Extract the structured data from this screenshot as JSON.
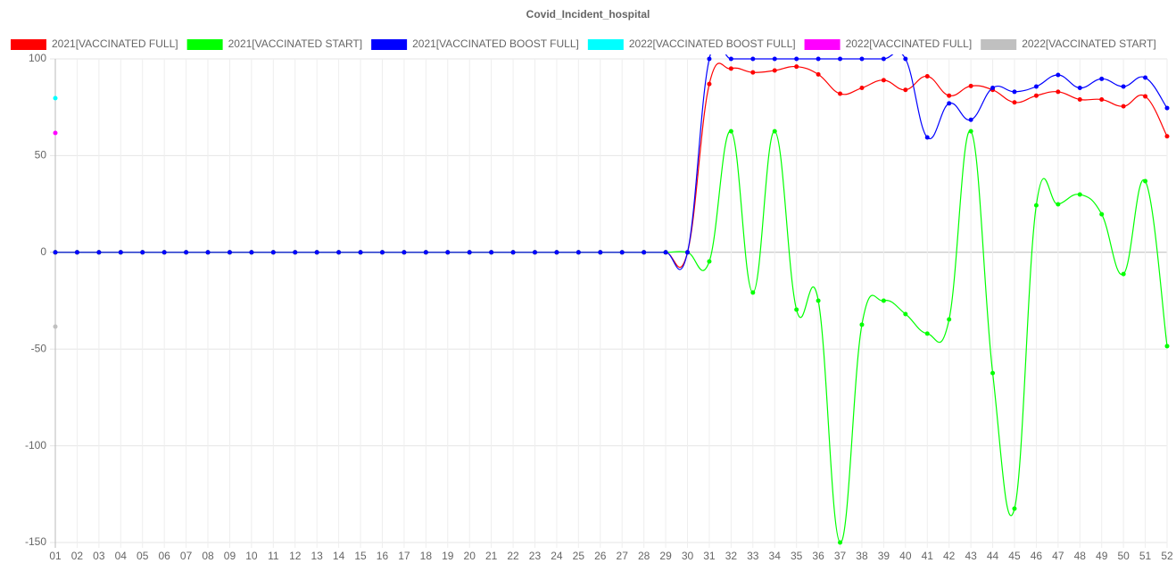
{
  "chart_data": {
    "type": "line",
    "title": "Covid_Incident_hospital",
    "categories": [
      "01",
      "02",
      "03",
      "04",
      "05",
      "06",
      "07",
      "08",
      "09",
      "10",
      "11",
      "12",
      "13",
      "14",
      "15",
      "16",
      "17",
      "18",
      "19",
      "20",
      "21",
      "22",
      "23",
      "24",
      "25",
      "26",
      "27",
      "28",
      "29",
      "30",
      "31",
      "32",
      "33",
      "34",
      "35",
      "36",
      "37",
      "38",
      "39",
      "40",
      "41",
      "42",
      "43",
      "44",
      "45",
      "46",
      "47",
      "48",
      "49",
      "50",
      "51",
      "52"
    ],
    "ylim": [
      -150,
      100
    ],
    "yticks": [
      -150,
      -100,
      -50,
      0,
      50,
      100
    ],
    "grid": true,
    "legend": "top",
    "series": [
      {
        "name": "2021[VACCINATED FULL]",
        "color": "#ff0000",
        "values": [
          0,
          0,
          0,
          0,
          0,
          0,
          0,
          0,
          0,
          0,
          0,
          0,
          0,
          0,
          0,
          0,
          0,
          0,
          0,
          0,
          0,
          0,
          0,
          0,
          0,
          0,
          0,
          0,
          0,
          0,
          87,
          95,
          93,
          94,
          96,
          92,
          82,
          85,
          89,
          84,
          91,
          81,
          86,
          84,
          77.5,
          81,
          83,
          79,
          79,
          75.5,
          80.6,
          60
        ]
      },
      {
        "name": "2021[VACCINATED START]",
        "color": "#00ff00",
        "values": [
          0,
          0,
          0,
          0,
          0,
          0,
          0,
          0,
          0,
          0,
          0,
          0,
          0,
          0,
          0,
          0,
          0,
          0,
          0,
          0,
          0,
          0,
          0,
          0,
          0,
          0,
          0,
          0,
          0,
          0,
          -4.7,
          62.6,
          -20.8,
          62.6,
          -29.6,
          -25,
          -150,
          -37.4,
          -25,
          -31.9,
          -42,
          -34.7,
          62.6,
          -62.4,
          -132.5,
          24.3,
          24.8,
          29.9,
          19.7,
          -11.2,
          36.8,
          -48.5
        ]
      },
      {
        "name": "2021[VACCINATED BOOST FULL]",
        "color": "#0000ff",
        "values": [
          0,
          0,
          0,
          0,
          0,
          0,
          0,
          0,
          0,
          0,
          0,
          0,
          0,
          0,
          0,
          0,
          0,
          0,
          0,
          0,
          0,
          0,
          0,
          0,
          0,
          0,
          0,
          0,
          0,
          0,
          100,
          100,
          100,
          100,
          100,
          100,
          100,
          100,
          100,
          100,
          59.4,
          77,
          68.5,
          85,
          83,
          85.7,
          91.7,
          85,
          89.7,
          85.7,
          90.3,
          74.6
        ]
      },
      {
        "name": "2022[VACCINATED BOOST FULL]",
        "color": "#00ffff",
        "values": [
          79.7,
          null,
          null,
          null,
          null,
          null,
          null,
          null,
          null,
          null,
          null,
          null,
          null,
          null,
          null,
          null,
          null,
          null,
          null,
          null,
          null,
          null,
          null,
          null,
          null,
          null,
          null,
          null,
          null,
          null,
          null,
          null,
          null,
          null,
          null,
          null,
          null,
          null,
          null,
          null,
          null,
          null,
          null,
          null,
          null,
          null,
          null,
          null,
          null,
          null,
          null,
          null
        ]
      },
      {
        "name": "2022[VACCINATED FULL]",
        "color": "#ff00ff",
        "values": [
          61.7,
          null,
          null,
          null,
          null,
          null,
          null,
          null,
          null,
          null,
          null,
          null,
          null,
          null,
          null,
          null,
          null,
          null,
          null,
          null,
          null,
          null,
          null,
          null,
          null,
          null,
          null,
          null,
          null,
          null,
          null,
          null,
          null,
          null,
          null,
          null,
          null,
          null,
          null,
          null,
          null,
          null,
          null,
          null,
          null,
          null,
          null,
          null,
          null,
          null,
          null,
          null
        ]
      },
      {
        "name": "2022[VACCINATED START]",
        "color": "#c0c0c0",
        "values": [
          -38.4,
          null,
          null,
          null,
          null,
          null,
          null,
          null,
          null,
          null,
          null,
          null,
          null,
          null,
          null,
          null,
          null,
          null,
          null,
          null,
          null,
          null,
          null,
          null,
          null,
          null,
          null,
          null,
          null,
          null,
          null,
          null,
          null,
          null,
          null,
          null,
          null,
          null,
          null,
          null,
          null,
          null,
          null,
          null,
          null,
          null,
          null,
          null,
          null,
          null,
          null,
          null
        ]
      }
    ]
  }
}
